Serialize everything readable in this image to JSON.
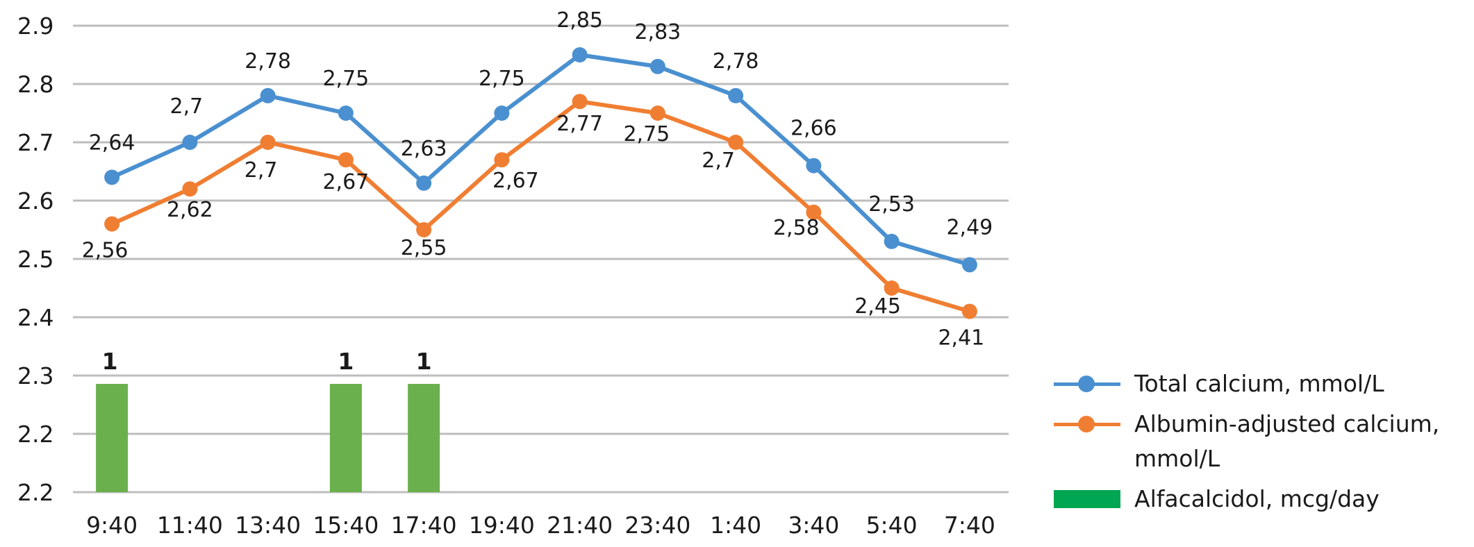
{
  "chart_data": {
    "type": "line",
    "categories": [
      "9:40",
      "11:40",
      "13:40",
      "15:40",
      "17:40",
      "19:40",
      "21:40",
      "23:40",
      "1:40",
      "3:40",
      "5:40",
      "7:40"
    ],
    "y_tick_labels": [
      "2.9",
      "2.8",
      "2.7",
      "2.6",
      "2.5",
      "2.4",
      "2.3",
      "2.2",
      "2.2"
    ],
    "ylim": [
      2.1,
      2.9
    ],
    "grid": true,
    "legend_position": "right",
    "series": [
      {
        "name": "Total calcium, mmol/L",
        "type": "line",
        "color": "#4a90d0",
        "values": [
          2.64,
          2.7,
          2.78,
          2.75,
          2.63,
          2.75,
          2.85,
          2.83,
          2.78,
          2.66,
          2.53,
          2.49
        ],
        "labels": [
          "2,64",
          "2,7",
          "2,78",
          "2,75",
          "2,63",
          "2,75",
          "2,85",
          "2,83",
          "2,78",
          "2,66",
          "2,53",
          "2,49"
        ]
      },
      {
        "name": "Albumin-adjusted calcium, mmol/L",
        "type": "line",
        "color": "#f07e32",
        "values": [
          2.56,
          2.62,
          2.7,
          2.67,
          2.55,
          2.67,
          2.77,
          2.75,
          2.7,
          2.58,
          2.45,
          2.41
        ],
        "labels": [
          "2,56",
          "2,62",
          "2,7",
          "2,67",
          "2,55",
          "2,67",
          "2,77",
          "2,75",
          "2,7",
          "2,58",
          "2,45",
          "2,41"
        ]
      },
      {
        "name": "Alfacalcidol, mcg/day",
        "type": "bar",
        "color": "#6ab04c",
        "legend_color": "#00a651",
        "values": [
          1,
          null,
          null,
          1,
          1,
          null,
          null,
          null,
          null,
          null,
          null,
          null
        ],
        "labels": [
          "1",
          "",
          "",
          "1",
          "1",
          "",
          "",
          "",
          "",
          "",
          "",
          ""
        ]
      }
    ]
  },
  "legend": {
    "total_calcium": "Total calcium, mmol/L",
    "albumin_line1": "Albumin-adjusted calcium,",
    "albumin_line2": "mmol/L",
    "alfacalcidol": "Alfacalcidol, mcg/day"
  }
}
